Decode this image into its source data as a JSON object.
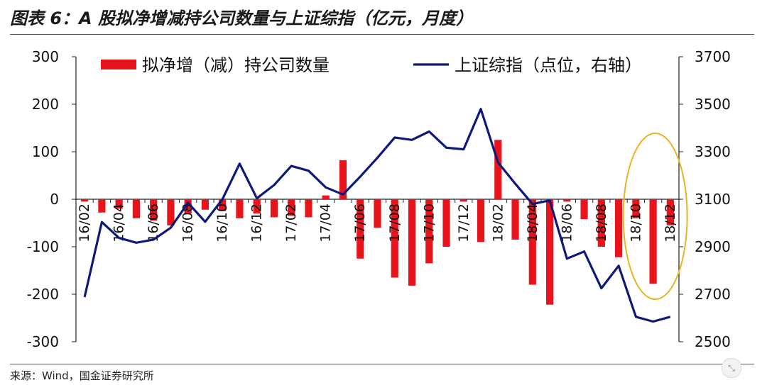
{
  "header": {
    "title": "图表 6：A 股拟净增减持公司数量与上证综指（亿元，月度）"
  },
  "footer": {
    "source": "来源：Wind，国金证券研究所"
  },
  "chart_data": {
    "type": "bar+line",
    "title": "图表 6：A 股拟净增减持公司数量与上证综指（亿元，月度）",
    "x": [
      "16/02",
      "16/03",
      "16/04",
      "16/05",
      "16/06",
      "16/07",
      "16/08",
      "16/09",
      "16/10",
      "16/11",
      "16/12",
      "17/01",
      "17/02",
      "17/03",
      "17/04",
      "17/05",
      "17/06",
      "17/07",
      "17/08",
      "17/09",
      "17/10",
      "17/11",
      "17/12",
      "18/01",
      "18/02",
      "18/03",
      "18/04",
      "18/05",
      "18/06",
      "18/07",
      "18/08",
      "18/09",
      "18/10",
      "18/11",
      "18/12"
    ],
    "x_tick_labels": [
      "16/02",
      "16/04",
      "16/06",
      "16/08",
      "16/10",
      "16/12",
      "17/02",
      "17/04",
      "17/06",
      "17/08",
      "17/10",
      "17/12",
      "18/02",
      "18/04",
      "18/06",
      "18/08",
      "18/10",
      "18/12"
    ],
    "y_left": {
      "lim": [
        -300,
        300
      ],
      "ticks": [
        "300",
        "200",
        "100",
        "0",
        "-100",
        "-200",
        "-300"
      ]
    },
    "y_right": {
      "lim": [
        2500,
        3700
      ],
      "ticks": [
        "3700",
        "3500",
        "3300",
        "3100",
        "2900",
        "2700",
        "2500"
      ]
    },
    "series": [
      {
        "name": "拟净增（减）持公司数量",
        "type": "bar",
        "axis": "left",
        "color": "#e8141b",
        "values": [
          -5,
          -28,
          -20,
          -40,
          -45,
          -55,
          -30,
          -22,
          -25,
          -40,
          -30,
          -38,
          -35,
          -38,
          8,
          82,
          -125,
          -60,
          -165,
          -182,
          -135,
          -100,
          -5,
          -90,
          125,
          -85,
          -180,
          -222,
          -5,
          -42,
          -100,
          -122,
          -40,
          -178,
          -55
        ]
      },
      {
        "name": "上证综指（点位，右轴）",
        "type": "line",
        "axis": "right",
        "color": "#0d1a7a",
        "values": [
          2688,
          3004,
          2937,
          2917,
          2930,
          2980,
          3085,
          3005,
          3100,
          3250,
          3104,
          3160,
          3240,
          3220,
          3150,
          3120,
          3195,
          3275,
          3360,
          3350,
          3385,
          3317,
          3310,
          3480,
          3255,
          3165,
          3080,
          3095,
          2850,
          2880,
          2725,
          2820,
          2605,
          2585,
          2605
        ]
      }
    ],
    "legend": {
      "position": "top",
      "entries": [
        "拟净增（减）持公司数量",
        "上证综指（点位，右轴）"
      ]
    },
    "grid": false,
    "annotation": {
      "shape": "ellipse",
      "color": "#e8b422",
      "covers": [
        "18/10",
        "18/12"
      ]
    }
  }
}
